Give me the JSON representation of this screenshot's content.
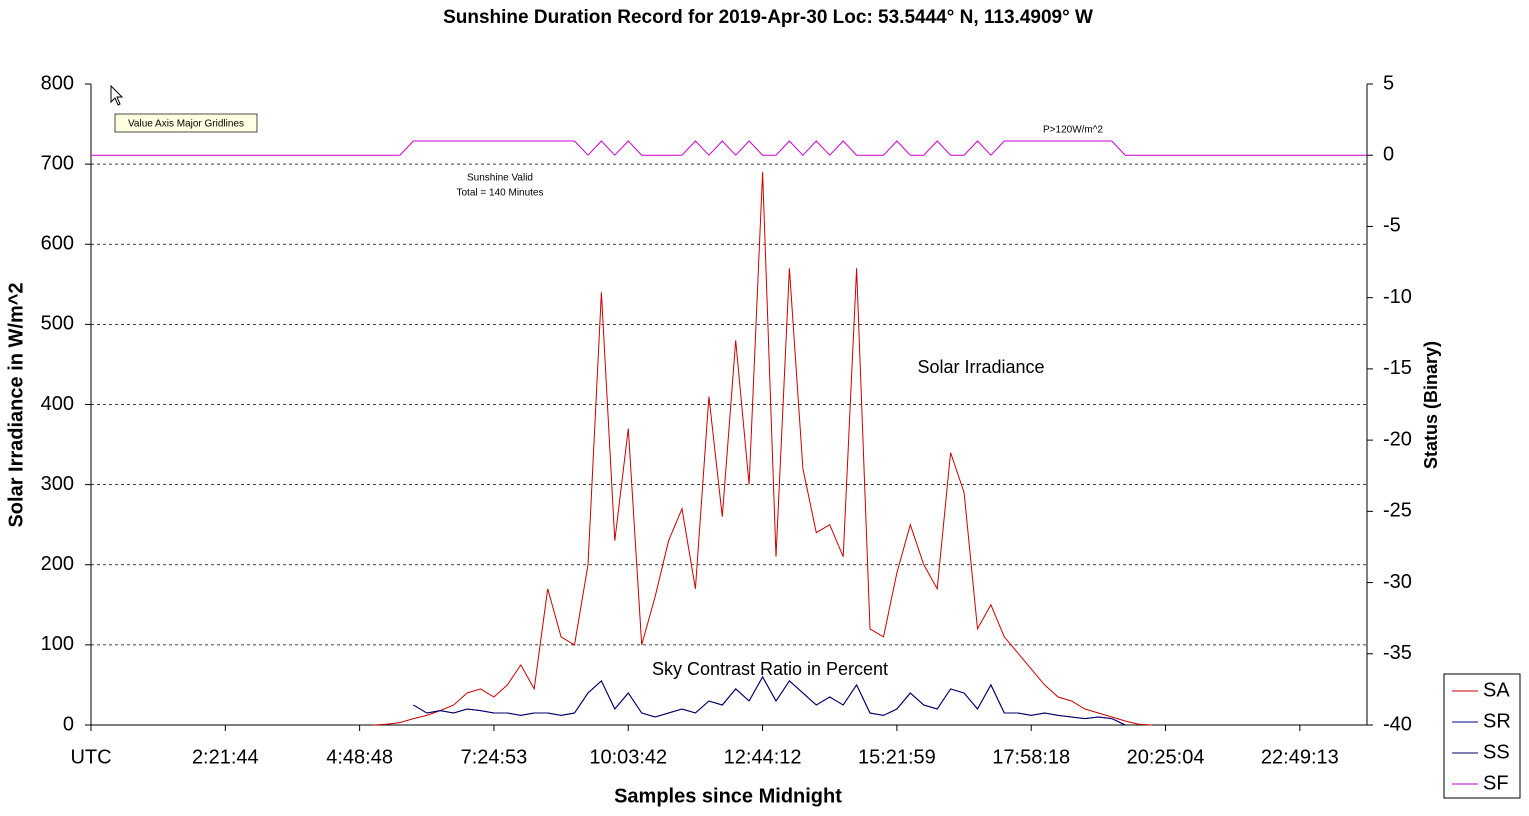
{
  "chart_data": {
    "type": "line",
    "title": "Sunshine Duration Record for 2019-Apr-30 Loc: 53.5444° N, 113.4909° W",
    "xlabel": "Samples since Midnight",
    "ylabel": "Solar Irradiance in W/m^2",
    "y2label": "Status (Binary)",
    "annotations": [
      "Solar Irradiance",
      "Sky Contrast Ratio in Percent",
      "Sunshine Valid",
      "Total = 140 Minutes",
      "P>120W/m^2",
      "Value Axis Major Gridlines"
    ],
    "xlim": [
      0,
      95
    ],
    "xticks": [
      {
        "value": 0,
        "label": "UTC"
      },
      {
        "value": 10,
        "label": "2:21:44"
      },
      {
        "value": 20,
        "label": "4:48:48"
      },
      {
        "value": 30,
        "label": "7:24:53"
      },
      {
        "value": 40,
        "label": "10:03:42"
      },
      {
        "value": 50,
        "label": "12:44:12"
      },
      {
        "value": 60,
        "label": "15:21:59"
      },
      {
        "value": 70,
        "label": "17:58:18"
      },
      {
        "value": 80,
        "label": "20:25:04"
      },
      {
        "value": 90,
        "label": "22:49:13"
      }
    ],
    "ylim": [
      0,
      800
    ],
    "yticks": [
      0,
      100,
      200,
      300,
      400,
      500,
      600,
      700,
      800
    ],
    "y2lim": [
      -40,
      5
    ],
    "y2ticks": [
      -40,
      -35,
      -30,
      -25,
      -20,
      -15,
      -10,
      -5,
      0,
      5
    ],
    "grid": true,
    "legend": "lower right",
    "x": [
      0,
      1,
      2,
      3,
      4,
      5,
      6,
      7,
      8,
      9,
      10,
      11,
      12,
      13,
      14,
      15,
      16,
      17,
      18,
      19,
      20,
      21,
      22,
      23,
      24,
      25,
      26,
      27,
      28,
      29,
      30,
      31,
      32,
      33,
      34,
      35,
      36,
      37,
      38,
      39,
      40,
      41,
      42,
      43,
      44,
      45,
      46,
      47,
      48,
      49,
      50,
      51,
      52,
      53,
      54,
      55,
      56,
      57,
      58,
      59,
      60,
      61,
      62,
      63,
      64,
      65,
      66,
      67,
      68,
      69,
      70,
      71,
      72,
      73,
      74,
      75,
      76,
      77,
      78,
      79,
      80,
      81,
      82,
      83,
      84,
      85,
      86,
      87,
      88,
      89,
      90,
      91,
      92,
      93,
      94,
      95
    ],
    "series": [
      {
        "name": "SA",
        "color": "#cc0000",
        "values": [
          null,
          null,
          null,
          null,
          null,
          null,
          null,
          null,
          null,
          null,
          null,
          null,
          null,
          null,
          null,
          null,
          null,
          null,
          null,
          null,
          null,
          0,
          1,
          3,
          8,
          12,
          18,
          25,
          40,
          45,
          35,
          50,
          75,
          45,
          170,
          110,
          100,
          200,
          540,
          230,
          370,
          100,
          160,
          230,
          270,
          170,
          410,
          260,
          480,
          300,
          690,
          210,
          570,
          320,
          240,
          250,
          210,
          570,
          120,
          110,
          190,
          250,
          200,
          170,
          340,
          290,
          120,
          150,
          110,
          90,
          70,
          50,
          35,
          30,
          20,
          15,
          10,
          5,
          1,
          0,
          null,
          null,
          null,
          null,
          null,
          null,
          null,
          null,
          null,
          null,
          null,
          null,
          null,
          null,
          null,
          null
        ]
      },
      {
        "name": "SR",
        "color": "#000099",
        "values": [
          null,
          null,
          null,
          null,
          null,
          null,
          null,
          null,
          null,
          null,
          null,
          null,
          null,
          null,
          null,
          null,
          null,
          null,
          null,
          null,
          null,
          null,
          null,
          null,
          25,
          15,
          18,
          15,
          20,
          18,
          15,
          15,
          12,
          15,
          15,
          12,
          15,
          40,
          55,
          20,
          40,
          15,
          10,
          15,
          20,
          15,
          30,
          25,
          45,
          30,
          60,
          30,
          55,
          40,
          25,
          35,
          25,
          50,
          15,
          12,
          20,
          40,
          25,
          20,
          45,
          40,
          20,
          50,
          15,
          15,
          12,
          15,
          12,
          10,
          8,
          10,
          8,
          0,
          null,
          null,
          null,
          null,
          null,
          null,
          null,
          null,
          null,
          null,
          null,
          null,
          null,
          null,
          null,
          null,
          null,
          null
        ]
      },
      {
        "name": "SS",
        "color": "#000066",
        "values": [
          null,
          null,
          null,
          null,
          null,
          null,
          null,
          null,
          null,
          null,
          null,
          null,
          null,
          null,
          null,
          null,
          null,
          null,
          null,
          null,
          null,
          null,
          null,
          null,
          25,
          15,
          18,
          15,
          20,
          18,
          15,
          15,
          12,
          15,
          15,
          12,
          15,
          40,
          55,
          20,
          40,
          15,
          10,
          15,
          20,
          15,
          30,
          25,
          45,
          30,
          60,
          30,
          55,
          40,
          25,
          35,
          25,
          50,
          15,
          12,
          20,
          40,
          25,
          20,
          45,
          40,
          20,
          50,
          15,
          15,
          12,
          15,
          12,
          10,
          8,
          10,
          8,
          0,
          null,
          null,
          null,
          null,
          null,
          null,
          null,
          null,
          null,
          null,
          null,
          null,
          null,
          null,
          null,
          null,
          null,
          null
        ]
      },
      {
        "name": "SF",
        "color": "#cc00cc",
        "axis": "y2",
        "values": [
          0,
          0,
          0,
          0,
          0,
          0,
          0,
          0,
          0,
          0,
          0,
          0,
          0,
          0,
          0,
          0,
          0,
          0,
          0,
          0,
          0,
          0,
          0,
          0,
          1,
          1,
          1,
          1,
          1,
          1,
          1,
          1,
          1,
          1,
          1,
          1,
          1,
          0,
          1,
          0,
          1,
          0,
          0,
          0,
          0,
          1,
          0,
          1,
          0,
          1,
          0,
          0,
          1,
          0,
          1,
          0,
          1,
          0,
          0,
          0,
          1,
          0,
          0,
          1,
          0,
          0,
          1,
          0,
          1,
          1,
          1,
          1,
          1,
          1,
          1,
          1,
          1,
          0,
          0,
          0,
          0,
          0,
          0,
          0,
          0,
          0,
          0,
          0,
          0,
          0,
          0,
          0,
          0,
          0,
          0,
          0
        ]
      }
    ]
  }
}
